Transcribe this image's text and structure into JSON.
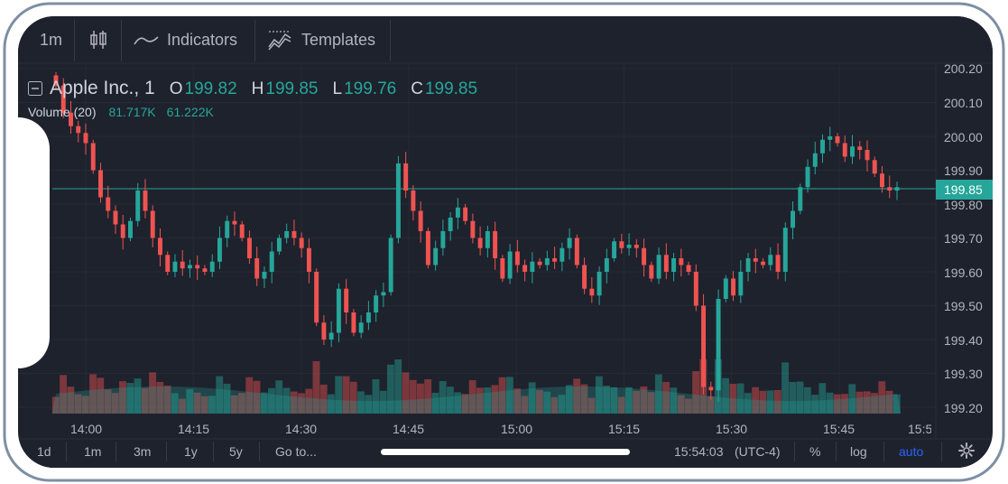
{
  "toolbar": {
    "interval": "1m",
    "indicators_label": "Indicators",
    "templates_label": "Templates",
    "icons": [
      "candlestick-icon",
      "indicators-icon",
      "templates-icon"
    ]
  },
  "legend": {
    "symbol": "Apple Inc., 1",
    "open_key": "O",
    "open": "199.82",
    "high_key": "H",
    "high": "199.85",
    "low_key": "L",
    "low": "199.76",
    "close_key": "C",
    "close": "199.85",
    "volume_label": "Volume (20)",
    "volume_value": "81.717K",
    "volume_ma": "61.222K"
  },
  "price_axis": {
    "ticks": [
      "200.20",
      "200.10",
      "200.00",
      "199.90",
      "199.80",
      "199.70",
      "199.60",
      "199.50",
      "199.40",
      "199.30",
      "199.20"
    ],
    "current_price": "199.85"
  },
  "time_axis": {
    "ticks": [
      "14:00",
      "14:15",
      "14:30",
      "14:45",
      "15:00",
      "15:15",
      "15:30",
      "15:45",
      "15:5"
    ]
  },
  "bottom_bar": {
    "ranges": [
      "1d",
      "1m",
      "3m",
      "1y",
      "5y"
    ],
    "goto": "Go to...",
    "clock": "15:54:03",
    "timezone": "(UTC-4)",
    "percent": "%",
    "log": "log",
    "auto": "auto"
  },
  "colors": {
    "background": "#1e222d",
    "up": "#26a69a",
    "down": "#ef5350",
    "text": "#b2b5be",
    "accent": "#2962ff"
  },
  "chart_data": {
    "type": "candlestick",
    "ylim": [
      199.15,
      200.22
    ],
    "close_series": [
      200.15,
      200.07,
      200.03,
      200.01,
      199.98,
      199.9,
      199.82,
      199.78,
      199.74,
      199.7,
      199.75,
      199.84,
      199.78,
      199.7,
      199.65,
      199.6,
      199.63,
      199.61,
      199.62,
      199.61,
      199.6,
      199.63,
      199.7,
      199.75,
      199.74,
      199.7,
      199.64,
      199.58,
      199.6,
      199.66,
      199.7,
      199.72,
      199.7,
      199.67,
      199.6,
      199.45,
      199.4,
      199.42,
      199.55,
      199.48,
      199.42,
      199.45,
      199.48,
      199.53,
      199.54,
      199.7,
      199.92,
      199.84,
      199.78,
      199.72,
      199.62,
      199.67,
      199.72,
      199.76,
      199.79,
      199.75,
      199.7,
      199.67,
      199.72,
      199.64,
      199.58,
      199.66,
      199.62,
      199.6,
      199.63,
      199.62,
      199.64,
      199.63,
      199.67,
      199.7,
      199.62,
      199.55,
      199.53,
      199.6,
      199.64,
      199.69,
      199.67,
      199.68,
      199.67,
      199.62,
      199.58,
      199.65,
      199.6,
      199.64,
      199.62,
      199.6,
      199.5,
      199.26,
      199.25,
      199.52,
      199.58,
      199.53,
      199.6,
      199.64,
      199.63,
      199.62,
      199.65,
      199.6,
      199.73,
      199.78,
      199.85,
      199.91,
      199.95,
      199.99,
      200.0,
      199.98,
      199.94,
      199.97,
      199.96,
      199.93,
      199.89,
      199.85,
      199.84,
      199.85
    ]
  }
}
